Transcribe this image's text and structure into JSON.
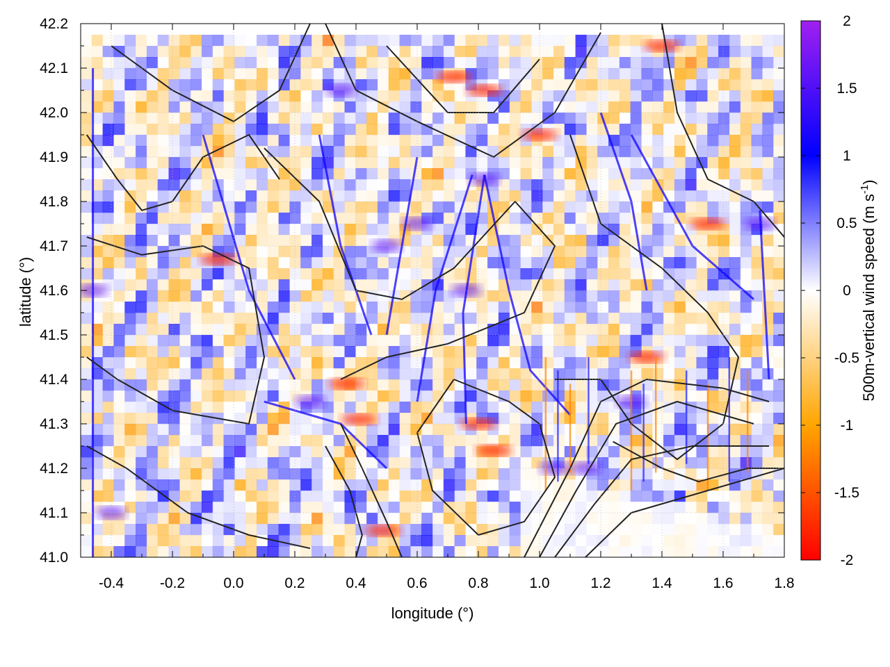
{
  "chart_data": {
    "type": "heatmap",
    "xlabel": "longitude (°)",
    "ylabel": "latitude (°)",
    "colorbar_label": "500m-vertical wind speed (m s-1)",
    "colorbar_label_parts": {
      "main": "500m-vertical wind speed (m s",
      "sup": "-1",
      "close": ")"
    },
    "xlim": [
      -0.5,
      1.8
    ],
    "ylim": [
      41.0,
      42.2
    ],
    "x_ticks": [
      -0.4,
      -0.2,
      0.0,
      0.2,
      0.4,
      0.6,
      0.8,
      1.0,
      1.2,
      1.4,
      1.6,
      1.8
    ],
    "x_tick_labels": [
      "-0.4",
      "-0.2",
      "0.0",
      "0.2",
      "0.4",
      "0.6",
      "0.8",
      "1.0",
      "1.2",
      "1.4",
      "1.6",
      "1.8"
    ],
    "y_ticks": [
      41.0,
      41.1,
      41.2,
      41.3,
      41.4,
      41.5,
      41.6,
      41.7,
      41.8,
      41.9,
      42.0,
      42.1,
      42.2
    ],
    "y_tick_labels": [
      "41.0",
      "41.1",
      "41.2",
      "41.3",
      "41.4",
      "41.5",
      "41.6",
      "41.7",
      "41.8",
      "41.9",
      "42.0",
      "42.1",
      "42.2"
    ],
    "colorbar": {
      "range": [
        -2,
        2
      ],
      "ticks": [
        2,
        1.5,
        1,
        0.5,
        0,
        -0.5,
        -1,
        -1.5,
        -2
      ],
      "tick_labels": [
        "2",
        "1.5",
        "1",
        "0.5",
        "0",
        "-0.5",
        "-1",
        "-1.5",
        "-2"
      ],
      "colors": [
        {
          "value": -2,
          "color": "#ff0000"
        },
        {
          "value": -1,
          "color": "#ffa500"
        },
        {
          "value": 0,
          "color": "#ffffff"
        },
        {
          "value": 1,
          "color": "#0000ff"
        },
        {
          "value": 2,
          "color": "#a020f0"
        }
      ]
    },
    "grid": true,
    "contour_color": "#222222",
    "strong_updrafts": [
      {
        "lon": 0.82,
        "lat": 41.85
      },
      {
        "lon": 0.76,
        "lat": 41.6
      },
      {
        "lon": 0.5,
        "lat": 41.7
      },
      {
        "lon": 0.6,
        "lat": 41.75
      },
      {
        "lon": 1.72,
        "lat": 41.75
      },
      {
        "lon": 1.3,
        "lat": 41.35
      },
      {
        "lon": -0.46,
        "lat": 41.6
      },
      {
        "lon": 0.35,
        "lat": 42.05
      },
      {
        "lon": 1.05,
        "lat": 41.2
      },
      {
        "lon": 1.15,
        "lat": 41.2
      },
      {
        "lon": -0.4,
        "lat": 41.1
      },
      {
        "lon": 0.25,
        "lat": 41.35
      }
    ],
    "strong_downdrafts": [
      {
        "lon": 0.82,
        "lat": 42.05
      },
      {
        "lon": 0.72,
        "lat": 42.08
      },
      {
        "lon": 1.4,
        "lat": 42.15
      },
      {
        "lon": 0.37,
        "lat": 41.39
      },
      {
        "lon": 0.41,
        "lat": 41.31
      },
      {
        "lon": 0.49,
        "lat": 41.06
      },
      {
        "lon": 0.8,
        "lat": 41.3
      },
      {
        "lon": 0.85,
        "lat": 41.24
      },
      {
        "lon": -0.05,
        "lat": 41.67
      },
      {
        "lon": 1.55,
        "lat": 41.75
      },
      {
        "lon": 1.35,
        "lat": 41.45
      },
      {
        "lon": 1.0,
        "lat": 41.95
      }
    ]
  }
}
